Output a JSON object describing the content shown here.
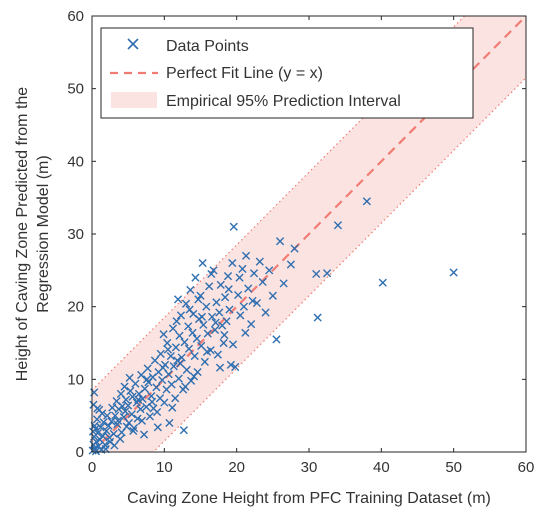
{
  "chart_data": {
    "type": "scatter",
    "title": "",
    "xlabel": "Caving Zone Height from PFC Training Dataset (m)",
    "ylabel_lines": [
      "Height of Caving Zone Predicted from the",
      "Regression Model (m)"
    ],
    "xlim": [
      0,
      60
    ],
    "ylim": [
      0,
      60
    ],
    "xticks": [
      0,
      10,
      20,
      30,
      40,
      50,
      60
    ],
    "yticks": [
      0,
      10,
      20,
      30,
      40,
      50,
      60
    ],
    "grid": false,
    "legend_position": "top-left",
    "series": [
      {
        "name": "Data Points",
        "marker": "x",
        "color": "#2e6fb0",
        "points": [
          [
            0.1,
            0.2
          ],
          [
            0.2,
            1.0
          ],
          [
            0.3,
            2.1
          ],
          [
            0.4,
            0.5
          ],
          [
            0.5,
            3.2
          ],
          [
            0.6,
            1.4
          ],
          [
            0.7,
            4.5
          ],
          [
            0.8,
            2.6
          ],
          [
            0.9,
            0.8
          ],
          [
            1.0,
            5.8
          ],
          [
            0.2,
            6.5
          ],
          [
            0.3,
            8.2
          ],
          [
            1.1,
            1.7
          ],
          [
            1.2,
            3.4
          ],
          [
            1.3,
            0.3
          ],
          [
            1.5,
            2.2
          ],
          [
            1.6,
            4.1
          ],
          [
            1.8,
            1.0
          ],
          [
            2.0,
            2.9
          ],
          [
            2.1,
            5.0
          ],
          [
            2.3,
            3.6
          ],
          [
            2.5,
            1.4
          ],
          [
            2.7,
            4.2
          ],
          [
            2.8,
            6.1
          ],
          [
            3.0,
            2.5
          ],
          [
            3.2,
            5.0
          ],
          [
            3.4,
            7.0
          ],
          [
            3.5,
            3.8
          ],
          [
            3.7,
            5.9
          ],
          [
            3.9,
            1.8
          ],
          [
            4.0,
            8.0
          ],
          [
            4.2,
            6.3
          ],
          [
            4.4,
            4.8
          ],
          [
            4.5,
            9.0
          ],
          [
            4.7,
            7.2
          ],
          [
            4.8,
            3.5
          ],
          [
            5.0,
            6.4
          ],
          [
            5.2,
            10.2
          ],
          [
            5.3,
            8.4
          ],
          [
            5.5,
            5.2
          ],
          [
            5.6,
            7.6
          ],
          [
            5.8,
            3.3
          ],
          [
            6.0,
            9.4
          ],
          [
            6.2,
            6.8
          ],
          [
            6.3,
            4.6
          ],
          [
            6.5,
            8.0
          ],
          [
            6.7,
            5.9
          ],
          [
            6.8,
            10.6
          ],
          [
            7.0,
            7.3
          ],
          [
            7.2,
            2.4
          ],
          [
            7.3,
            8.7
          ],
          [
            7.5,
            6.2
          ],
          [
            7.7,
            11.5
          ],
          [
            7.8,
            9.6
          ],
          [
            8.0,
            4.9
          ],
          [
            8.2,
            7.7
          ],
          [
            8.4,
            10.3
          ],
          [
            8.5,
            6.0
          ],
          [
            8.7,
            12.6
          ],
          [
            8.9,
            8.9
          ],
          [
            9.0,
            5.5
          ],
          [
            9.2,
            11.0
          ],
          [
            9.4,
            7.4
          ],
          [
            9.5,
            13.5
          ],
          [
            9.7,
            9.9
          ],
          [
            9.9,
            16.2
          ],
          [
            10.0,
            6.8
          ],
          [
            10.1,
            12.0
          ],
          [
            10.3,
            8.6
          ],
          [
            10.4,
            15.0
          ],
          [
            10.6,
            10.7
          ],
          [
            10.7,
            4.0
          ],
          [
            10.9,
            13.2
          ],
          [
            11.0,
            9.3
          ],
          [
            11.2,
            17.0
          ],
          [
            11.3,
            11.8
          ],
          [
            11.5,
            7.4
          ],
          [
            11.6,
            14.4
          ],
          [
            11.8,
            12.6
          ],
          [
            11.9,
            21.0
          ],
          [
            12.0,
            10.1
          ],
          [
            12.1,
            16.0
          ],
          [
            12.3,
            18.8
          ],
          [
            12.4,
            13.0
          ],
          [
            12.6,
            8.6
          ],
          [
            12.7,
            3.0
          ],
          [
            12.8,
            15.1
          ],
          [
            13.0,
            20.4
          ],
          [
            13.1,
            11.3
          ],
          [
            13.3,
            17.3
          ],
          [
            13.4,
            14.2
          ],
          [
            13.6,
            22.3
          ],
          [
            13.7,
            9.8
          ],
          [
            13.9,
            16.4
          ],
          [
            14.0,
            19.0
          ],
          [
            14.2,
            13.2
          ],
          [
            14.3,
            24.0
          ],
          [
            14.5,
            15.6
          ],
          [
            14.6,
            11.0
          ],
          [
            14.8,
            18.3
          ],
          [
            15.0,
            21.5
          ],
          [
            15.1,
            14.6
          ],
          [
            15.3,
            26.0
          ],
          [
            15.4,
            17.5
          ],
          [
            15.6,
            12.4
          ],
          [
            15.8,
            20.0
          ],
          [
            16.0,
            16.3
          ],
          [
            16.2,
            22.8
          ],
          [
            16.4,
            14.0
          ],
          [
            16.6,
            18.6
          ],
          [
            16.8,
            25.0
          ],
          [
            17.0,
            16.8
          ],
          [
            17.2,
            20.6
          ],
          [
            17.4,
            13.4
          ],
          [
            17.6,
            19.2
          ],
          [
            17.8,
            23.0
          ],
          [
            18.0,
            17.4
          ],
          [
            18.2,
            15.0
          ],
          [
            18.4,
            21.3
          ],
          [
            18.6,
            18.0
          ],
          [
            18.8,
            24.2
          ],
          [
            19.0,
            19.6
          ],
          [
            19.2,
            12.0
          ],
          [
            19.4,
            26.0
          ],
          [
            19.6,
            31.0
          ],
          [
            19.8,
            11.7
          ],
          [
            20.2,
            21.6
          ],
          [
            20.5,
            18.8
          ],
          [
            20.8,
            25.2
          ],
          [
            21.0,
            20.0
          ],
          [
            21.3,
            27.0
          ],
          [
            21.6,
            22.5
          ],
          [
            22.0,
            17.6
          ],
          [
            22.4,
            24.6
          ],
          [
            22.8,
            20.5
          ],
          [
            23.2,
            26.2
          ],
          [
            23.6,
            23.4
          ],
          [
            24.0,
            19.2
          ],
          [
            24.5,
            25.0
          ],
          [
            25.0,
            21.5
          ],
          [
            25.5,
            15.5
          ],
          [
            26.0,
            29.0
          ],
          [
            26.5,
            23.2
          ],
          [
            27.5,
            25.8
          ],
          [
            28.0,
            28.0
          ],
          [
            31.0,
            24.5
          ],
          [
            31.2,
            18.5
          ],
          [
            32.5,
            24.6
          ],
          [
            34.0,
            31.2
          ],
          [
            38.0,
            34.5
          ],
          [
            40.2,
            23.3
          ],
          [
            50.0,
            24.7
          ],
          [
            0.15,
            2.8
          ],
          [
            0.35,
            3.6
          ],
          [
            0.55,
            0.1
          ],
          [
            0.75,
            6.0
          ],
          [
            1.4,
            5.3
          ],
          [
            1.9,
            0.4
          ],
          [
            2.4,
            2.0
          ],
          [
            3.1,
            0.9
          ],
          [
            3.6,
            4.3
          ],
          [
            4.1,
            2.7
          ],
          [
            4.6,
            5.6
          ],
          [
            5.1,
            4.0
          ],
          [
            5.7,
            2.9
          ],
          [
            6.4,
            7.2
          ],
          [
            6.9,
            4.3
          ],
          [
            7.6,
            10.0
          ],
          [
            8.3,
            6.9
          ],
          [
            9.1,
            3.4
          ],
          [
            9.8,
            11.6
          ],
          [
            10.5,
            14.1
          ],
          [
            11.1,
            6.1
          ],
          [
            11.7,
            18.0
          ],
          [
            12.2,
            12.2
          ],
          [
            12.9,
            9.0
          ],
          [
            13.5,
            19.6
          ],
          [
            14.1,
            10.4
          ],
          [
            14.7,
            21.0
          ],
          [
            15.2,
            18.6
          ],
          [
            15.9,
            13.8
          ],
          [
            16.5,
            24.5
          ],
          [
            17.1,
            17.8
          ],
          [
            17.7,
            11.6
          ],
          [
            18.3,
            16.1
          ],
          [
            18.9,
            22.4
          ],
          [
            19.5,
            14.8
          ],
          [
            20.4,
            24.0
          ],
          [
            21.2,
            16.4
          ],
          [
            22.2,
            20.8
          ]
        ]
      },
      {
        "name": "Perfect Fit Line (y = x)",
        "type": "line",
        "style": "dashed",
        "color": "#f07c74",
        "x": [
          0,
          60
        ],
        "y": [
          0,
          60
        ]
      },
      {
        "name": "Empirical 95% Prediction Interval",
        "type": "band",
        "color": "#fbe3e1",
        "border_color": "#f07c74",
        "offset": 8.5
      }
    ]
  }
}
